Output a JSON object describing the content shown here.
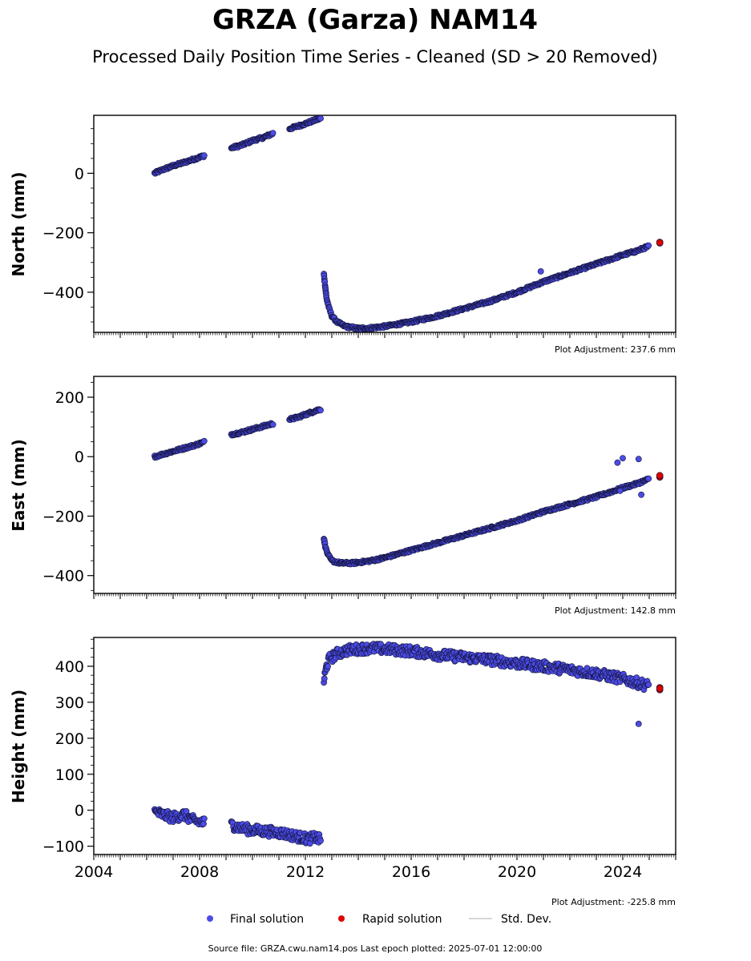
{
  "header": {
    "title": "GRZA (Garza) NAM14",
    "subtitle": "Processed Daily Position Time Series - Cleaned (SD > 20 Removed)"
  },
  "colors": {
    "final": "#4b4be6",
    "rapid": "#e00000",
    "edge": "#111133",
    "stddev": "#c8c8c8"
  },
  "legend": {
    "final": "Final solution",
    "rapid": "Rapid solution",
    "stddev": "Std. Dev."
  },
  "footer": {
    "source": "Source file: GRZA.cwu.nam14.pos  Last epoch plotted: 2025-07-01 12:00:00"
  },
  "chart_data": [
    {
      "type": "scatter",
      "ylabel": "North (mm)",
      "adjustment": "Plot Adjustment: 237.6 mm",
      "xlim": [
        2004,
        2026
      ],
      "ylim": [
        -535,
        195
      ],
      "yticks": [
        -400,
        -200,
        0
      ],
      "ytick_labels": [
        "−400",
        "−200",
        "0"
      ],
      "series": [
        {
          "kind": "final",
          "x": [
            2006.3,
            2006.6,
            2007.0,
            2007.4,
            2007.8,
            2008.2,
            2009.2,
            2009.6,
            2010.0,
            2010.4,
            2010.8,
            2011.4,
            2011.7,
            2012.1,
            2012.4,
            2012.6,
            2012.7,
            2012.75,
            2012.8,
            2012.9,
            2013.0,
            2013.2,
            2013.5,
            2014.0,
            2014.5,
            2015.0,
            2016.0,
            2017.0,
            2018.0,
            2019.0,
            2020.0,
            2021.0,
            2022.0,
            2023.0,
            2024.0,
            2024.5,
            2025.0
          ],
          "y": [
            0,
            12,
            25,
            36,
            48,
            60,
            85,
            95,
            110,
            120,
            135,
            150,
            158,
            170,
            180,
            185,
            -340,
            -380,
            -420,
            -455,
            -480,
            -500,
            -515,
            -522,
            -520,
            -515,
            -500,
            -480,
            -455,
            -430,
            -400,
            -365,
            -335,
            -305,
            -275,
            -262,
            -245
          ]
        },
        {
          "kind": "outlier",
          "x": [
            2020.9
          ],
          "y": [
            -330
          ]
        },
        {
          "kind": "rapid",
          "x": [
            2025.4
          ],
          "y": [
            -235
          ]
        }
      ]
    },
    {
      "type": "scatter",
      "ylabel": "East (mm)",
      "adjustment": "Plot Adjustment: 142.8 mm",
      "xlim": [
        2004,
        2026
      ],
      "ylim": [
        -460,
        270
      ],
      "yticks": [
        -400,
        -200,
        0,
        200
      ],
      "ytick_labels": [
        "−400",
        "−200",
        "0",
        "200"
      ],
      "series": [
        {
          "kind": "final",
          "x": [
            2006.3,
            2006.6,
            2007.0,
            2007.4,
            2007.8,
            2008.2,
            2009.2,
            2009.6,
            2010.0,
            2010.4,
            2010.8,
            2011.4,
            2011.7,
            2012.1,
            2012.4,
            2012.6,
            2012.7,
            2012.75,
            2012.85,
            2013.0,
            2013.3,
            2013.8,
            2014.5,
            2015.0,
            2016.0,
            2017.0,
            2018.0,
            2019.0,
            2020.0,
            2021.0,
            2022.0,
            2023.0,
            2024.0,
            2024.5,
            2025.0
          ],
          "y": [
            0,
            8,
            18,
            28,
            38,
            50,
            75,
            82,
            92,
            102,
            112,
            125,
            132,
            145,
            155,
            160,
            -275,
            -300,
            -330,
            -350,
            -358,
            -358,
            -350,
            -340,
            -315,
            -290,
            -265,
            -240,
            -215,
            -185,
            -160,
            -135,
            -105,
            -92,
            -75
          ]
        },
        {
          "kind": "outlier",
          "x": [
            2023.8,
            2024.0,
            2024.6,
            2024.7,
            2023.9
          ],
          "y": [
            -20,
            -5,
            -8,
            -128,
            -115
          ]
        },
        {
          "kind": "rapid",
          "x": [
            2025.4
          ],
          "y": [
            -65
          ]
        }
      ]
    },
    {
      "type": "scatter",
      "ylabel": "Height (mm)",
      "adjustment": "Plot Adjustment: -225.8 mm",
      "xlim": [
        2004,
        2026
      ],
      "xticks": [
        2004,
        2008,
        2012,
        2016,
        2020,
        2024
      ],
      "ylim": [
        -123,
        480
      ],
      "yticks": [
        -100,
        0,
        100,
        200,
        300,
        400
      ],
      "ytick_labels": [
        "−100",
        "0",
        "100",
        "200",
        "300",
        "400"
      ],
      "series": [
        {
          "kind": "final",
          "x": [
            2006.3,
            2006.7,
            2007.0,
            2007.4,
            2007.8,
            2008.2,
            2009.2,
            2009.6,
            2010.0,
            2010.4,
            2011.0,
            2011.4,
            2012.1,
            2012.4,
            2012.6,
            2012.7,
            2012.8,
            2012.9,
            2013.2,
            2013.6,
            2014.0,
            2014.5,
            2015.0,
            2016.0,
            2017.0,
            2018.0,
            2019.0,
            2020.0,
            2021.0,
            2022.0,
            2023.0,
            2024.0,
            2024.5,
            2025.0
          ],
          "y": [
            -5,
            -15,
            -20,
            -12,
            -30,
            -35,
            -40,
            -50,
            -55,
            -58,
            -62,
            -68,
            -80,
            -75,
            -85,
            360,
            400,
            420,
            435,
            445,
            448,
            450,
            448,
            442,
            432,
            425,
            418,
            408,
            400,
            390,
            380,
            365,
            355,
            345
          ]
        },
        {
          "kind": "outlier",
          "x": [
            2024.6
          ],
          "y": [
            240
          ]
        },
        {
          "kind": "rapid",
          "x": [
            2025.4
          ],
          "y": [
            338
          ]
        }
      ]
    }
  ]
}
